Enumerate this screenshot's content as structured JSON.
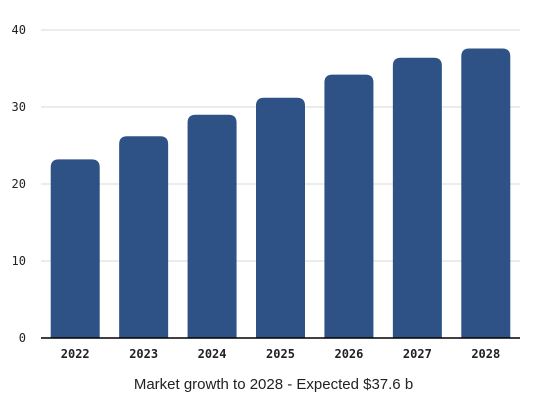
{
  "chart_data": {
    "type": "bar",
    "categories": [
      "2022",
      "2023",
      "2024",
      "2025",
      "2026",
      "2027",
      "2028"
    ],
    "values": [
      23.2,
      26.2,
      29.0,
      31.2,
      34.2,
      36.4,
      37.6
    ],
    "xlabel": "Market growth to 2028 - Expected $37.6 b",
    "ylabel": "",
    "ylim": [
      0,
      40
    ],
    "yticks": [
      0,
      10,
      20,
      30,
      40
    ],
    "grid": true,
    "bar_color": "#2e5286",
    "grid_color": "#d9d9d9",
    "axis_color": "#000000"
  }
}
